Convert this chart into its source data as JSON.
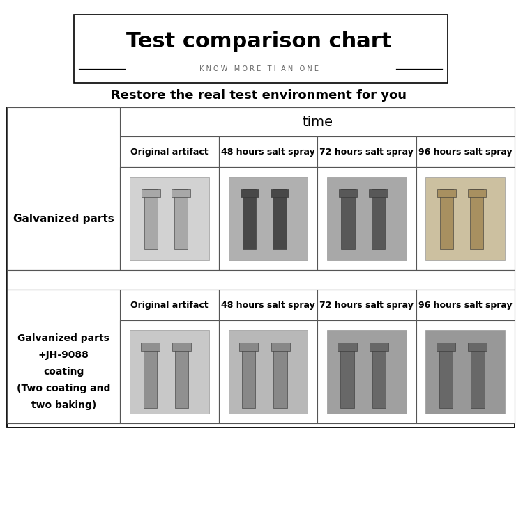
{
  "title": "Test comparison chart",
  "subtitle": "K N O W   M O R E   T H A N   O N E",
  "tagline": "Restore the real test environment for you",
  "time_label": "time",
  "col_headers": [
    "Original artifact",
    "48 hours salt spray",
    "72 hours salt spray",
    "96 hours salt spray"
  ],
  "row1_label": "Galvanized parts",
  "row2_label": "Galvanized parts\n+JH-9088\ncoating\n(Two coating and\ntwo baking)",
  "bg_color": "#ffffff",
  "table_line_color": "#555555",
  "img_bg_colors_row1": [
    "#d2d2d2",
    "#b0b0b0",
    "#a8a8a8",
    "#ccc0a0"
  ],
  "img_bg_colors_row2": [
    "#c8c8c8",
    "#b8b8b8",
    "#a0a0a0",
    "#989898"
  ],
  "bolt_colors_row1": [
    "#a8a8a8",
    "#484848",
    "#585858",
    "#a89060"
  ],
  "bolt_colors_row2": [
    "#909090",
    "#888888",
    "#686868",
    "#686868"
  ]
}
